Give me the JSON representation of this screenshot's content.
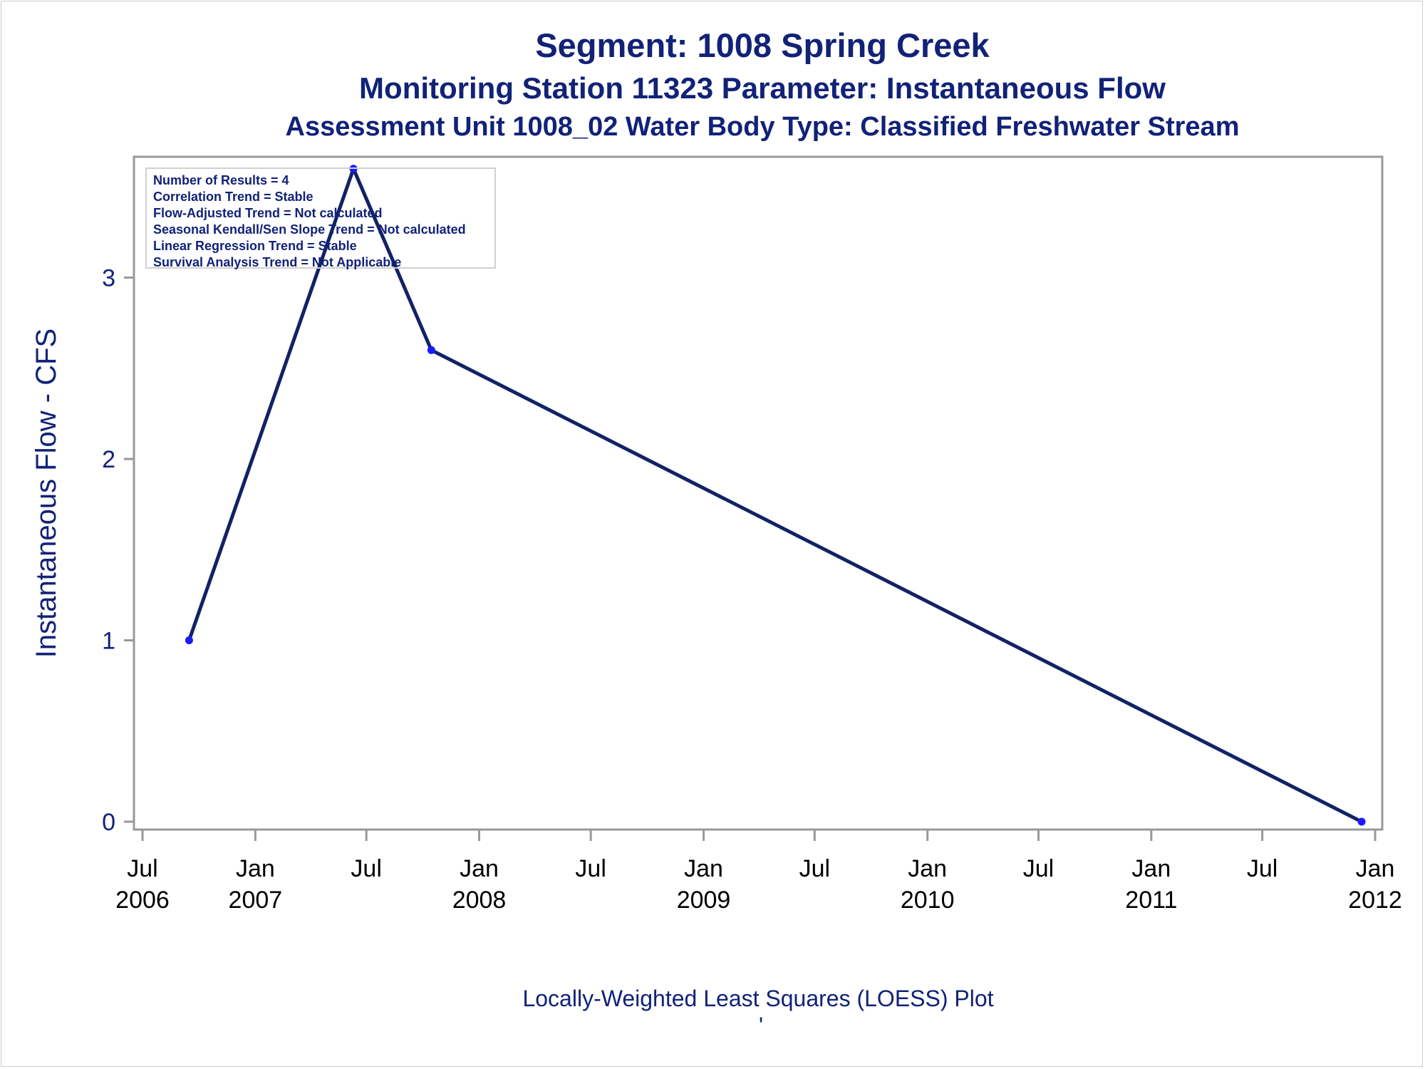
{
  "titles": {
    "line1": "Segment: 1008  Spring Creek",
    "line2": "Monitoring Station 11323 Parameter: Instantaneous Flow",
    "line3": "Assessment Unit 1008_02   Water Body Type: Classified Freshwater Stream"
  },
  "stats_box": [
    "Number of Results = 4",
    "Correlation Trend = Stable",
    "Flow-Adjusted Trend = Not calculated",
    "Seasonal Kendall/Sen Slope Trend = Not calculated",
    "Linear Regression Trend = Stable",
    "Survival Analysis Trend = Not Applicable"
  ],
  "footnote": "Locally-Weighted Least Squares (LOESS) Plot",
  "footnote_mark": "'",
  "colors": {
    "text": "#112277",
    "line": "#112266",
    "marker": "#1a1aff",
    "frame": "#999999"
  },
  "chart_data": {
    "type": "line",
    "title": "Segment: 1008  Spring Creek",
    "subtitle": "Monitoring Station 11323 Parameter: Instantaneous Flow",
    "ylabel": "Instantaneous Flow - CFS",
    "xlabel": "",
    "xlim": [
      "2006-07-01",
      "2012-01-01"
    ],
    "ylim": [
      0,
      3.6
    ],
    "y_ticks": [
      0,
      1,
      2,
      3
    ],
    "x_ticks": [
      {
        "date": "2006-07-01",
        "label1": "Jul",
        "label2": "2006"
      },
      {
        "date": "2007-01-01",
        "label1": "Jan",
        "label2": "2007"
      },
      {
        "date": "2007-07-01",
        "label1": "Jul",
        "label2": ""
      },
      {
        "date": "2008-01-01",
        "label1": "Jan",
        "label2": "2008"
      },
      {
        "date": "2008-07-01",
        "label1": "Jul",
        "label2": ""
      },
      {
        "date": "2009-01-01",
        "label1": "Jan",
        "label2": "2009"
      },
      {
        "date": "2009-07-01",
        "label1": "Jul",
        "label2": ""
      },
      {
        "date": "2010-01-01",
        "label1": "Jan",
        "label2": "2010"
      },
      {
        "date": "2010-07-01",
        "label1": "Jul",
        "label2": ""
      },
      {
        "date": "2011-01-01",
        "label1": "Jan",
        "label2": "2011"
      },
      {
        "date": "2011-07-01",
        "label1": "Jul",
        "label2": ""
      },
      {
        "date": "2012-01-01",
        "label1": "Jan",
        "label2": "2012"
      }
    ],
    "points": [
      {
        "x": "2006-09-15",
        "y": 1.0
      },
      {
        "x": "2007-06-10",
        "y": 3.6
      },
      {
        "x": "2007-10-15",
        "y": 2.6
      },
      {
        "x": "2011-12-10",
        "y": 0.0
      }
    ],
    "loess_curve": [
      {
        "x": "2006-09-15",
        "y": 1.0
      },
      {
        "x": "2007-06-10",
        "y": 3.6
      },
      {
        "x": "2007-10-15",
        "y": 2.6
      },
      {
        "x": "2011-12-10",
        "y": 0.0
      }
    ],
    "grid": false,
    "legend": "none"
  }
}
